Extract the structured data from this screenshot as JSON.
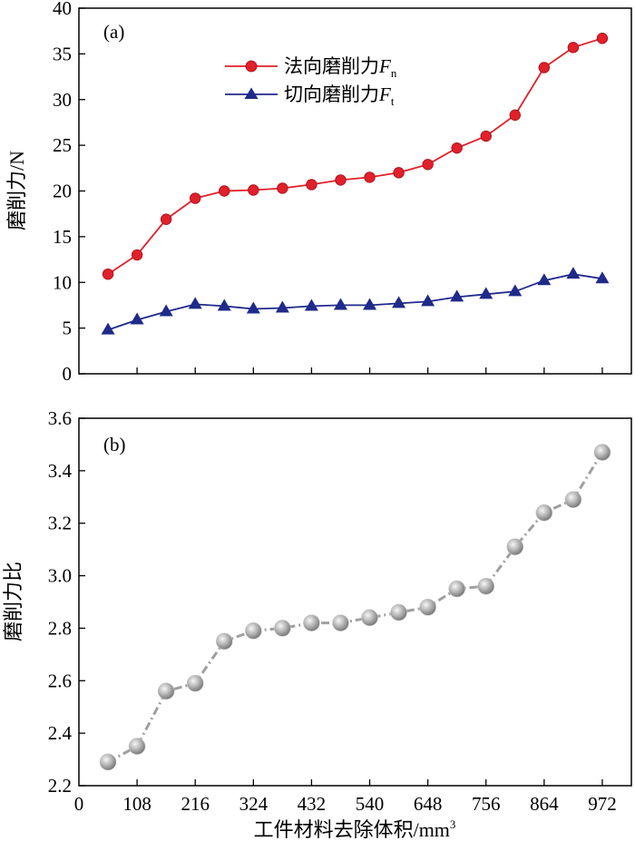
{
  "chart_data": [
    {
      "panel": "(a)",
      "type": "line",
      "x": [
        54,
        108,
        162,
        216,
        270,
        324,
        378,
        432,
        486,
        540,
        594,
        648,
        702,
        756,
        810,
        864,
        918,
        972
      ],
      "series": [
        {
          "name": "法向磨削力",
          "legend_symbol": "F",
          "legend_sub": "n",
          "color": "#e0202a",
          "marker": "circle",
          "values": [
            10.9,
            13.0,
            16.9,
            19.2,
            20.0,
            20.1,
            20.3,
            20.7,
            21.2,
            21.5,
            22.0,
            22.9,
            24.7,
            26.0,
            28.3,
            33.5,
            35.7,
            36.7
          ]
        },
        {
          "name": "切向磨削力",
          "legend_symbol": "F",
          "legend_sub": "t",
          "color": "#1f2a8a",
          "marker": "triangle",
          "values": [
            4.8,
            5.9,
            6.8,
            7.6,
            7.4,
            7.1,
            7.2,
            7.4,
            7.5,
            7.5,
            7.7,
            7.9,
            8.4,
            8.7,
            9.0,
            10.2,
            10.9,
            10.4
          ]
        }
      ],
      "ylabel": "磨削力/N",
      "ylim": [
        0,
        40
      ],
      "yticks": [
        0,
        5,
        10,
        15,
        20,
        25,
        30,
        35,
        40
      ],
      "xlim": [
        0,
        1026
      ],
      "legend_position": "top-center",
      "grid": false
    },
    {
      "panel": "(b)",
      "type": "line",
      "x": [
        54,
        108,
        162,
        216,
        270,
        324,
        378,
        432,
        486,
        540,
        594,
        648,
        702,
        756,
        810,
        864,
        918,
        972
      ],
      "series": [
        {
          "color": "#a0a0a0",
          "line_style": "dash-dot",
          "marker": "sphere",
          "values": [
            2.29,
            2.35,
            2.56,
            2.59,
            2.75,
            2.79,
            2.8,
            2.82,
            2.82,
            2.84,
            2.86,
            2.88,
            2.95,
            2.96,
            3.11,
            3.24,
            3.29,
            3.47
          ]
        }
      ],
      "ylabel": "磨削力比",
      "ylim": [
        2.2,
        3.6
      ],
      "yticks": [
        "2.2",
        "2.4",
        "2.6",
        "2.8",
        "3.0",
        "3.2",
        "3.4",
        "3.6"
      ],
      "xlim": [
        0,
        1026
      ],
      "xticks": [
        0,
        108,
        216,
        324,
        432,
        540,
        648,
        756,
        864,
        972
      ],
      "xlabel": "工件材料去除体积/mm",
      "xlabel_sup": "3",
      "grid": false
    }
  ]
}
